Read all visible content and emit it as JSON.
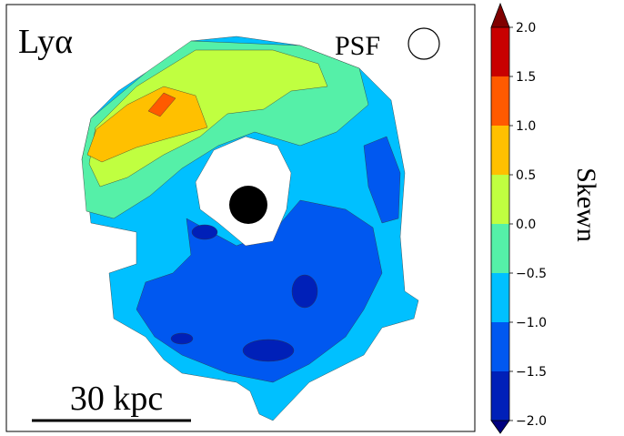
{
  "chart_data": {
    "type": "contour",
    "title": "Lyα",
    "psf_label": "PSF",
    "scale_bar_label": "30 kpc",
    "colorbar": {
      "label": "Skewn",
      "lim": [
        -2.0,
        2.0
      ],
      "ticks": [
        {
          "value": -2.0,
          "label": "−2.0"
        },
        {
          "value": -1.5,
          "label": "−1.5"
        },
        {
          "value": -1.0,
          "label": "−1.0"
        },
        {
          "value": -0.5,
          "label": "−0.5"
        },
        {
          "value": 0.0,
          "label": "0.0"
        },
        {
          "value": 0.5,
          "label": "0.5"
        },
        {
          "value": 1.0,
          "label": "1.0"
        },
        {
          "value": 1.5,
          "label": "1.5"
        },
        {
          "value": 2.0,
          "label": "2.0"
        }
      ],
      "colors": [
        "#0020b8",
        "#0058f0",
        "#00c0ff",
        "#55f0a8",
        "#c0ff40",
        "#ffc000",
        "#ff5a00",
        "#c80000"
      ],
      "under_color": "#00007f",
      "over_color": "#800000"
    }
  }
}
